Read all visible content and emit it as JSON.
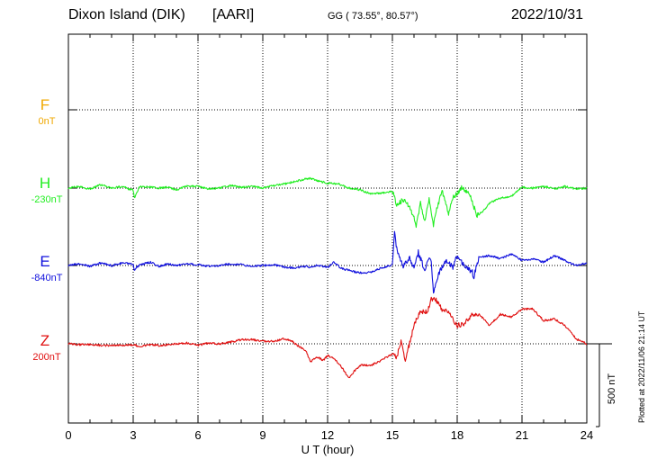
{
  "header": {
    "station": "Dixon Island (DIK)",
    "institute": "[AARI]",
    "coords": "GG ( 73.55°,  80.57°)",
    "date": "2022/10/31"
  },
  "side_note": "Plotted at 2022/11/06 21:14 UT",
  "scale_label": "500 nT",
  "colors": {
    "F": "#f0a800",
    "H": "#22ee22",
    "E": "#1010dd",
    "Z": "#e01010",
    "axis": "#000000"
  },
  "chart_data": {
    "type": "line",
    "title": "Dixon Island (DIK)  [AARI]",
    "xlabel": "U T (hour)",
    "xlim": [
      0,
      24
    ],
    "xticks": [
      "0",
      "3",
      "6",
      "9",
      "12",
      "15",
      "18",
      "21",
      "24"
    ],
    "scale_bar_nT": 500,
    "series": [
      {
        "name": "F",
        "baseline": "0nT",
        "color": "#f0a800",
        "x": [],
        "y": []
      },
      {
        "name": "H",
        "baseline": "-230nT",
        "color": "#22ee22",
        "x": [
          0,
          0.5,
          1,
          1.5,
          2,
          2.5,
          3,
          3.05,
          3.3,
          3.8,
          4.2,
          4.6,
          5,
          5.5,
          6,
          6.5,
          7,
          7.5,
          8,
          8.5,
          9,
          9.5,
          10,
          10.5,
          11,
          11.2,
          11.5,
          12,
          12.5,
          13,
          13.5,
          14,
          14.5,
          15,
          15.2,
          15.5,
          15.8,
          16,
          16.1,
          16.3,
          16.5,
          16.7,
          16.9,
          17,
          17.3,
          17.6,
          17.8,
          18,
          18.2,
          18.5,
          18.7,
          18.9,
          19.2,
          19.5,
          20,
          20.5,
          21,
          21.5,
          22,
          22.5,
          23,
          23.5,
          24
        ],
        "y": [
          0,
          10,
          -5,
          20,
          0,
          10,
          -15,
          -60,
          10,
          5,
          0,
          5,
          -10,
          15,
          10,
          -5,
          0,
          15,
          5,
          10,
          0,
          15,
          25,
          40,
          55,
          60,
          45,
          30,
          25,
          0,
          -10,
          -35,
          -30,
          -20,
          -100,
          -70,
          -110,
          -180,
          -240,
          -90,
          -200,
          -70,
          -220,
          -150,
          -20,
          -150,
          -60,
          -30,
          0,
          -20,
          -80,
          -170,
          -140,
          -90,
          -60,
          -50,
          5,
          0,
          10,
          -5,
          10,
          -5,
          0
        ]
      },
      {
        "name": "E",
        "baseline": "-840nT",
        "color": "#1010dd",
        "x": [
          0,
          0.5,
          1,
          1.5,
          2,
          2.5,
          3,
          3.05,
          3.3,
          3.8,
          4.2,
          4.6,
          5,
          5.5,
          6,
          6.5,
          7,
          7.5,
          8,
          8.5,
          9,
          9.5,
          10,
          10.5,
          11,
          11.2,
          11.5,
          12,
          12.3,
          12.6,
          13,
          13.5,
          14,
          14.5,
          15,
          15.1,
          15.2,
          15.5,
          15.8,
          16,
          16.2,
          16.5,
          16.7,
          16.8,
          16.9,
          17.2,
          17.5,
          17.8,
          18,
          18.3,
          18.7,
          18.75,
          19,
          19.5,
          20,
          20.5,
          21,
          21.5,
          22,
          22.5,
          23,
          23.5,
          24
        ],
        "y": [
          0,
          10,
          -5,
          15,
          0,
          15,
          10,
          -25,
          5,
          20,
          -5,
          10,
          0,
          10,
          5,
          -5,
          0,
          10,
          5,
          -5,
          0,
          5,
          -10,
          -15,
          -5,
          -10,
          0,
          -10,
          20,
          -15,
          -30,
          -45,
          -40,
          -15,
          5,
          200,
          100,
          -10,
          50,
          -20,
          80,
          -30,
          60,
          20,
          -160,
          -30,
          30,
          -10,
          60,
          0,
          -40,
          -80,
          50,
          60,
          40,
          70,
          30,
          40,
          20,
          60,
          30,
          0,
          15
        ]
      },
      {
        "name": "Z",
        "baseline": "200nT",
        "color": "#e01010",
        "x": [
          0,
          0.5,
          1,
          1.5,
          2,
          2.5,
          3,
          3.3,
          3.8,
          4.2,
          4.6,
          5,
          5.5,
          6,
          6.5,
          7,
          7.5,
          8,
          8.5,
          9,
          9.5,
          10,
          10.3,
          10.6,
          11,
          11.2,
          11.5,
          11.8,
          12,
          12.3,
          12.6,
          13,
          13.2,
          13.5,
          14,
          14.5,
          15,
          15.2,
          15.4,
          15.6,
          16,
          16.3,
          16.6,
          16.8,
          17,
          17.3,
          17.6,
          18,
          18.3,
          18.7,
          19,
          19.5,
          20,
          20.5,
          21,
          21.5,
          22,
          22.5,
          23,
          23.5,
          24
        ],
        "y": [
          0,
          -5,
          -5,
          -10,
          -10,
          -10,
          -5,
          -15,
          -5,
          -10,
          -5,
          0,
          5,
          -10,
          5,
          0,
          10,
          25,
          25,
          15,
          15,
          30,
          20,
          -10,
          -40,
          -110,
          -80,
          -100,
          -70,
          -90,
          -130,
          -210,
          -170,
          -130,
          -130,
          -100,
          -60,
          -80,
          10,
          -100,
          110,
          200,
          190,
          270,
          270,
          210,
          190,
          110,
          120,
          180,
          180,
          110,
          180,
          160,
          210,
          210,
          140,
          150,
          110,
          30,
          0
        ]
      }
    ]
  }
}
